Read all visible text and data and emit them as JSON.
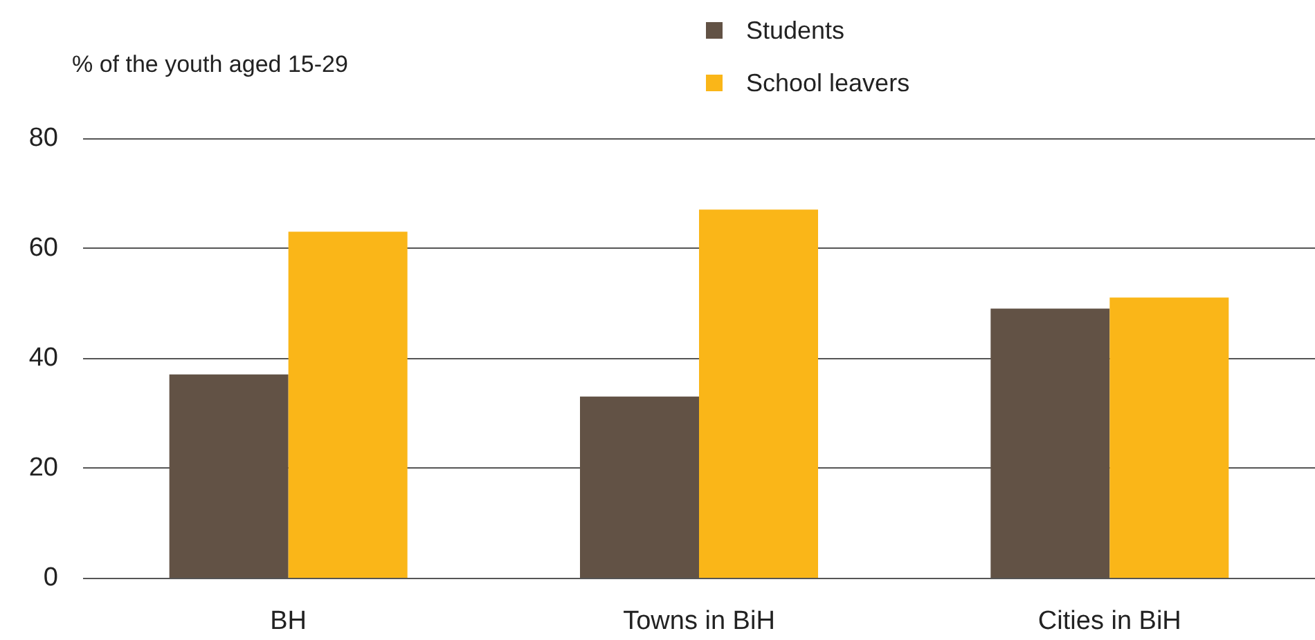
{
  "chart_data": {
    "type": "bar",
    "ylabel": "% of the youth aged 15-29",
    "categories": [
      "BH",
      "Towns in BiH",
      "Cities in BiH"
    ],
    "series": [
      {
        "name": "Students",
        "color": "#625245",
        "values": [
          37,
          33,
          49
        ]
      },
      {
        "name": "School leavers",
        "color": "#fab618",
        "values": [
          63,
          67,
          51
        ]
      }
    ],
    "ylim": [
      0,
      80
    ],
    "yticks": [
      0,
      20,
      40,
      60,
      80
    ],
    "grid": "y",
    "legend": "top"
  }
}
